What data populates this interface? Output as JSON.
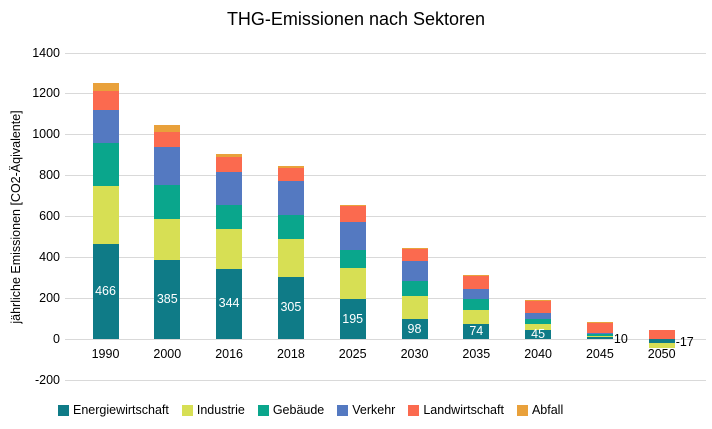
{
  "chart_data": {
    "type": "bar",
    "stacked": true,
    "title": "THG-Emissionen nach Sektoren",
    "ylabel": "jährliche Emissionen [CO2-Äqivalente]",
    "xlabel": "",
    "ylim": [
      -200,
      1400
    ],
    "ytick_step": 200,
    "yticks": [
      1400,
      1200,
      1000,
      800,
      600,
      400,
      200,
      0,
      -200
    ],
    "grid": true,
    "legend_position": "bottom",
    "categories": [
      "1990",
      "2000",
      "2016",
      "2018",
      "2025",
      "2030",
      "2035",
      "2040",
      "2045",
      "2050"
    ],
    "series": [
      {
        "name": "Energiewirtschaft",
        "color": "#0f7b87",
        "values": [
          466,
          385,
          344,
          305,
          195,
          98,
          74,
          45,
          10,
          -17
        ]
      },
      {
        "name": "Industrie",
        "color": "#d7df54",
        "values": [
          284,
          205,
          194,
          185,
          152,
          115,
          69,
          28,
          5,
          -25
        ]
      },
      {
        "name": "Gebäude",
        "color": "#0aa68c",
        "values": [
          210,
          165,
          117,
          118,
          90,
          69,
          53,
          26,
          9,
          0
        ]
      },
      {
        "name": "Verkehr",
        "color": "#5479c1",
        "values": [
          163,
          185,
          163,
          166,
          137,
          101,
          50,
          28,
          8,
          0
        ]
      },
      {
        "name": "Landwirtschaft",
        "color": "#fb6a4f",
        "values": [
          90,
          75,
          72,
          62,
          76,
          59,
          64,
          62,
          49,
          45
        ]
      },
      {
        "name": "Abfall",
        "color": "#e9a13b",
        "values": [
          38,
          33,
          16,
          13,
          7,
          6,
          6,
          3,
          2,
          0
        ]
      }
    ],
    "bar_labels": [
      {
        "category": "1990",
        "text": "466",
        "placement": "inside"
      },
      {
        "category": "2000",
        "text": "385",
        "placement": "inside"
      },
      {
        "category": "2016",
        "text": "344",
        "placement": "inside"
      },
      {
        "category": "2018",
        "text": "305",
        "placement": "inside"
      },
      {
        "category": "2025",
        "text": "195",
        "placement": "inside"
      },
      {
        "category": "2030",
        "text": "98",
        "placement": "inside"
      },
      {
        "category": "2035",
        "text": "74",
        "placement": "inside"
      },
      {
        "category": "2040",
        "text": "45",
        "placement": "inside"
      },
      {
        "category": "2045",
        "text": "10",
        "placement": "outside"
      },
      {
        "category": "2050",
        "text": "-17",
        "placement": "outside"
      }
    ],
    "gridline_color": "#d9d9d9"
  }
}
